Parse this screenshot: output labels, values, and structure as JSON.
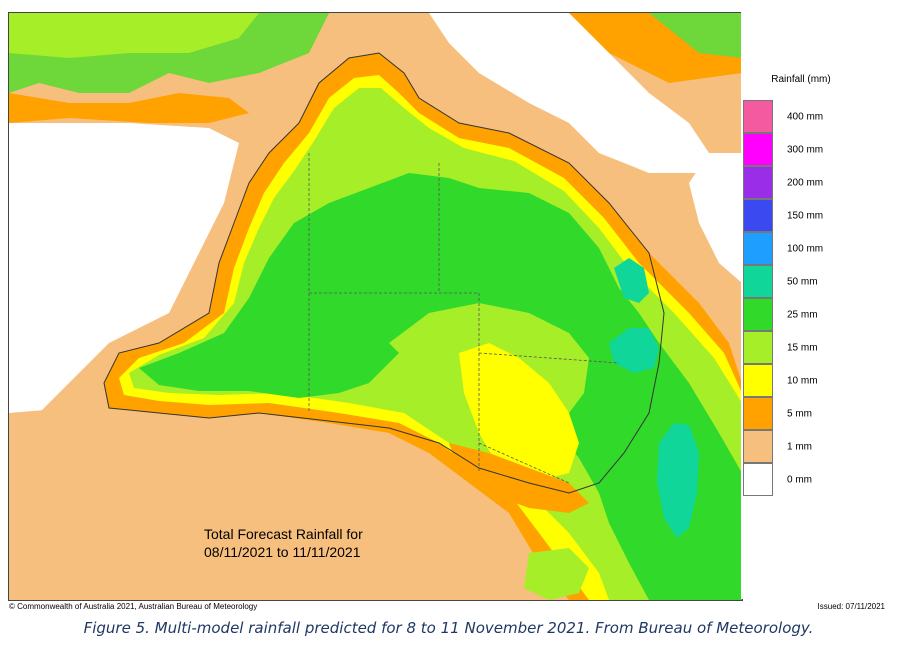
{
  "map": {
    "title_line1": "Total Forecast Rainfall for",
    "title_line2": "08/11/2021 to 11/11/2021"
  },
  "legend": {
    "title": "Rainfall (mm)",
    "items": [
      {
        "label": "400 mm",
        "color": "#f45aa0"
      },
      {
        "label": "300 mm",
        "color": "#ff00ff"
      },
      {
        "label": "200 mm",
        "color": "#9a2ee8"
      },
      {
        "label": "150 mm",
        "color": "#3a4af0"
      },
      {
        "label": "100 mm",
        "color": "#1e9eff"
      },
      {
        "label": "50 mm",
        "color": "#11d69a"
      },
      {
        "label": "25 mm",
        "color": "#31d92b"
      },
      {
        "label": "15 mm",
        "color": "#a6ee28"
      },
      {
        "label": "10 mm",
        "color": "#ffff00"
      },
      {
        "label": "5 mm",
        "color": "#ffa200"
      },
      {
        "label": "1 mm",
        "color": "#f7bf7e"
      },
      {
        "label": "0 mm",
        "color": "#ffffff"
      }
    ]
  },
  "footer": {
    "copyright": "© Commonwealth of Australia 2021, Australian Bureau of Meteorology",
    "issued": "Issued: 07/11/2021"
  },
  "caption": "Figure 5. Multi-model rainfall predicted for 8 to 11 November 2021. From Bureau of Meteorology."
}
